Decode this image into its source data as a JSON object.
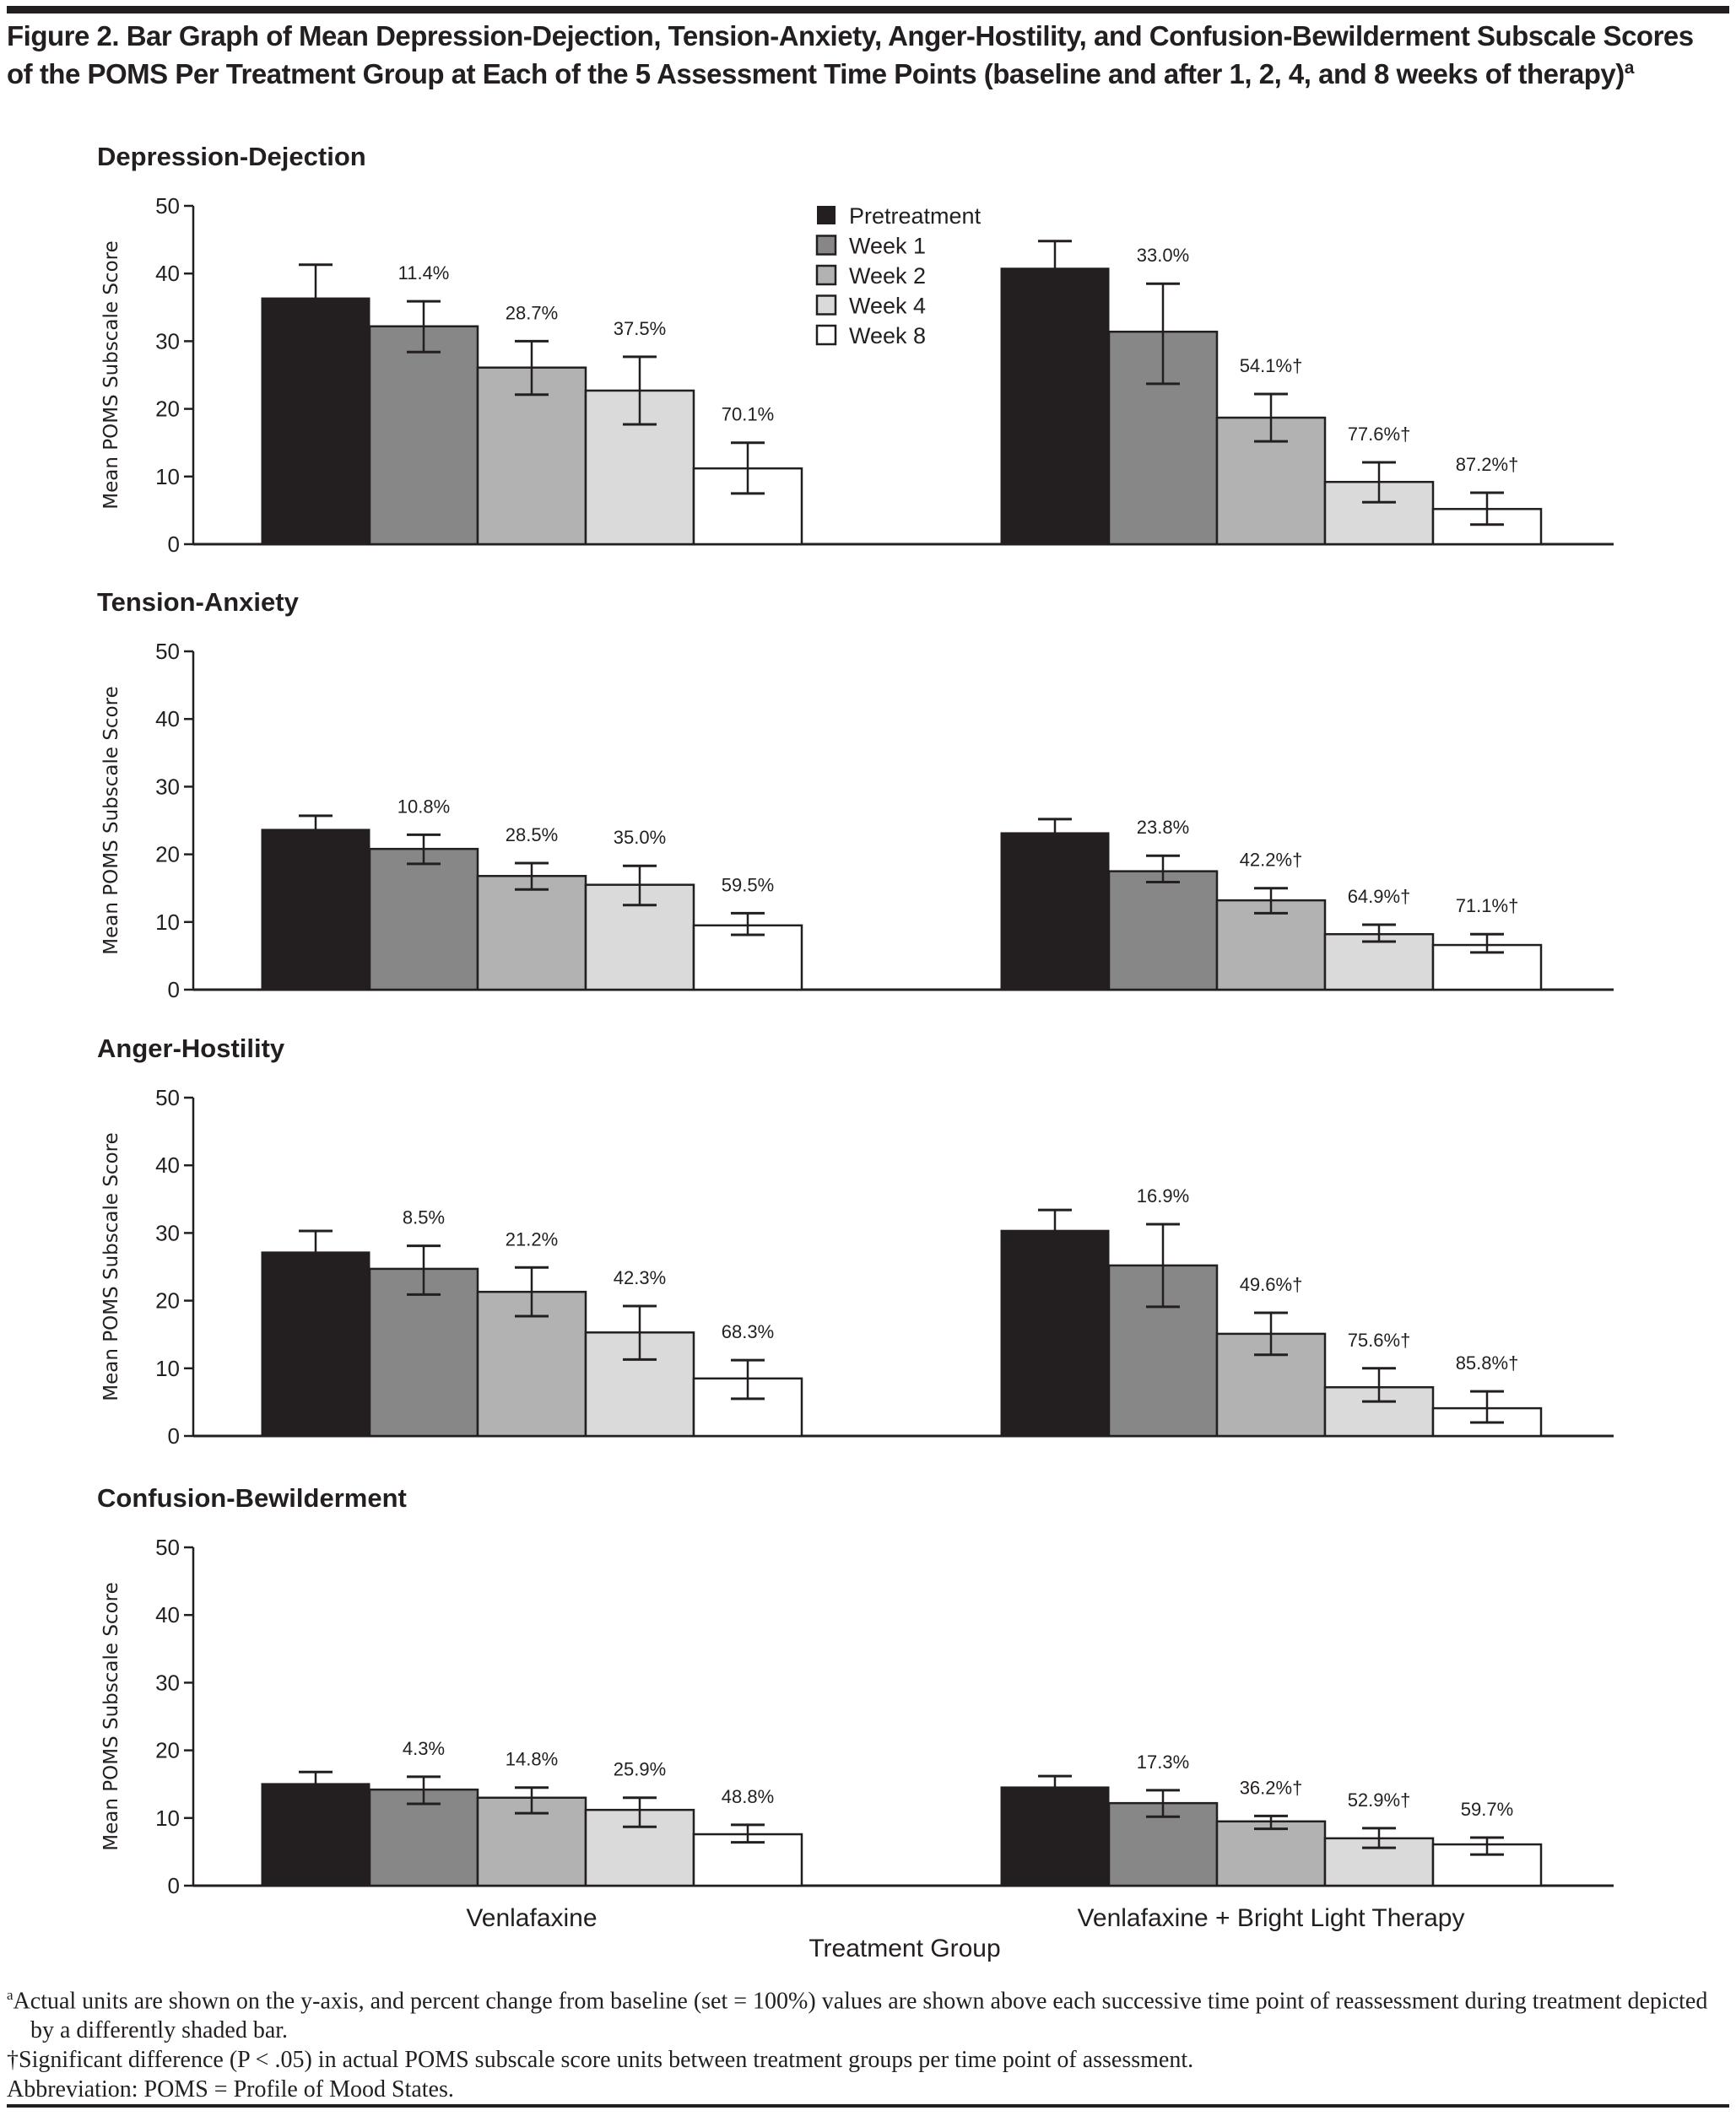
{
  "figure": {
    "title": "Figure 2. Bar Graph of Mean Depression-Dejection, Tension-Anxiety, Anger-Hostility, and Confusion-Bewilderment Subscale Scores of the POMS Per Treatment Group at Each of the 5 Assessment Time Points (baseline and after 1, 2, 4, and 8 weeks of therapy)",
    "title_sup": "a",
    "footnotes": {
      "a_mark": "a",
      "a_text": "Actual units are shown on the y-axis, and percent change from baseline (set = 100%) values are shown above each successive time point of reassessment during treatment depicted by a differently shaded bar.",
      "dagger_text": "†Significant difference (P < .05) in actual POMS subscale score units between treatment groups per time point of assessment.",
      "abbrev_text": "Abbreviation: POMS = Profile of Mood States."
    }
  },
  "chart_data": {
    "type": "bar",
    "ylabel": "Mean POMS Subscale Score",
    "xlabel": "Treatment Group",
    "ylim": [
      0,
      50
    ],
    "yticks": [
      0,
      10,
      20,
      30,
      40,
      50
    ],
    "grid": false,
    "legend_position": "top-center",
    "categories": [
      "Venlafaxine",
      "Venlafaxine + Bright Light Therapy"
    ],
    "series_names": [
      "Pretreatment",
      "Week 1",
      "Week 2",
      "Week 4",
      "Week 8"
    ],
    "series_colors": [
      "#231f20",
      "#878787",
      "#b2b2b2",
      "#dadada",
      "#ffffff"
    ],
    "panels": [
      {
        "title": "Depression-Dejection",
        "groups": [
          {
            "category": "Venlafaxine",
            "values": [
              36.4,
              32.2,
              26.1,
              22.7,
              11.2
            ],
            "err_low": [
              null,
              28.4,
              22.1,
              17.7,
              7.5
            ],
            "err_high": [
              41.3,
              35.9,
              30.0,
              27.7,
              15.0
            ],
            "pct_labels": [
              "",
              "11.4%",
              "28.7%",
              "37.5%",
              "70.1%"
            ]
          },
          {
            "category": "Venlafaxine + Bright Light Therapy",
            "values": [
              40.8,
              31.4,
              18.7,
              9.2,
              5.2
            ],
            "err_low": [
              null,
              23.7,
              15.2,
              6.2,
              2.9
            ],
            "err_high": [
              44.8,
              38.5,
              22.2,
              12.1,
              7.6
            ],
            "pct_labels": [
              "",
              "33.0%",
              "54.1%†",
              "77.6%†",
              "87.2%†"
            ]
          }
        ]
      },
      {
        "title": "Tension-Anxiety",
        "groups": [
          {
            "category": "Venlafaxine",
            "values": [
              23.7,
              20.8,
              16.8,
              15.5,
              9.5
            ],
            "err_low": [
              null,
              18.6,
              14.8,
              12.5,
              8.1
            ],
            "err_high": [
              25.7,
              22.9,
              18.7,
              18.3,
              11.3
            ],
            "pct_labels": [
              "",
              "10.8%",
              "28.5%",
              "35.0%",
              "59.5%"
            ]
          },
          {
            "category": "Venlafaxine + Bright Light Therapy",
            "values": [
              23.2,
              17.5,
              13.2,
              8.2,
              6.6
            ],
            "err_low": [
              null,
              15.9,
              11.3,
              7.1,
              5.5
            ],
            "err_high": [
              25.2,
              19.8,
              15.0,
              9.6,
              8.2
            ],
            "pct_labels": [
              "",
              "23.8%",
              "42.2%†",
              "64.9%†",
              "71.1%†"
            ]
          }
        ]
      },
      {
        "title": "Anger-Hostility",
        "groups": [
          {
            "category": "Venlafaxine",
            "values": [
              27.2,
              24.7,
              21.3,
              15.3,
              8.5
            ],
            "err_low": [
              null,
              20.9,
              17.7,
              11.3,
              5.5
            ],
            "err_high": [
              30.3,
              28.1,
              24.9,
              19.2,
              11.2
            ],
            "pct_labels": [
              "",
              "8.5%",
              "21.2%",
              "42.3%",
              "68.3%"
            ]
          },
          {
            "category": "Venlafaxine + Bright Light Therapy",
            "values": [
              30.4,
              25.2,
              15.1,
              7.2,
              4.1
            ],
            "err_low": [
              null,
              19.1,
              12.0,
              5.1,
              2.0
            ],
            "err_high": [
              33.4,
              31.3,
              18.2,
              10.0,
              6.6
            ],
            "pct_labels": [
              "",
              "16.9%",
              "49.6%†",
              "75.6%†",
              "85.8%†"
            ]
          }
        ]
      },
      {
        "title": "Confusion-Bewilderment",
        "groups": [
          {
            "category": "Venlafaxine",
            "values": [
              15.1,
              14.2,
              13.0,
              11.2,
              7.6
            ],
            "err_low": [
              null,
              12.1,
              10.7,
              8.7,
              6.4
            ],
            "err_high": [
              16.8,
              16.1,
              14.5,
              13.0,
              9.0
            ],
            "pct_labels": [
              "",
              "4.3%",
              "14.8%",
              "25.9%",
              "48.8%"
            ]
          },
          {
            "category": "Venlafaxine + Bright Light Therapy",
            "values": [
              14.6,
              12.2,
              9.5,
              7.0,
              6.1
            ],
            "err_low": [
              null,
              10.2,
              8.4,
              5.6,
              4.6
            ],
            "err_high": [
              16.2,
              14.1,
              10.3,
              8.5,
              7.1
            ],
            "pct_labels": [
              "",
              "17.3%",
              "36.2%†",
              "52.9%†",
              "59.7%"
            ]
          }
        ]
      }
    ]
  }
}
